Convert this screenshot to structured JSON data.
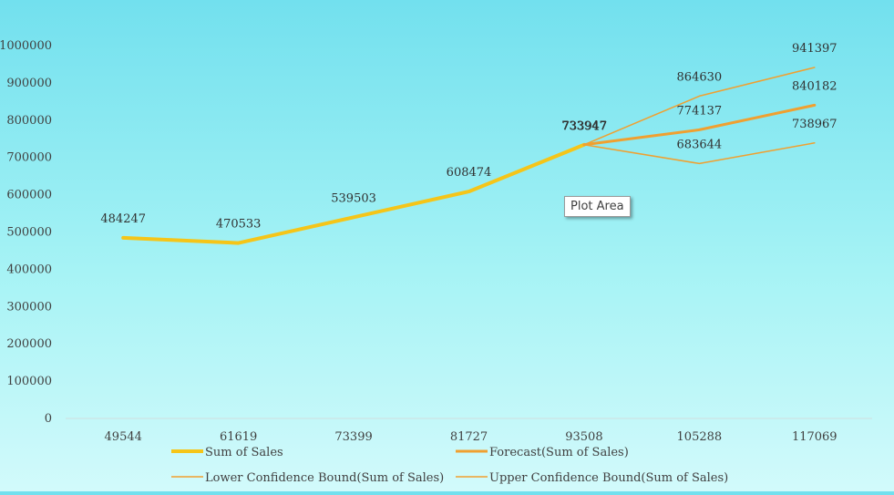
{
  "chart_data": {
    "type": "line",
    "title": "",
    "xlabel": "",
    "ylabel": "",
    "categories": [
      "49544",
      "61619",
      "73399",
      "81727",
      "93508",
      "105288",
      "117069"
    ],
    "ylim": [
      0,
      1000000
    ],
    "yticks": [
      0,
      100000,
      200000,
      300000,
      400000,
      500000,
      600000,
      700000,
      800000,
      900000,
      1000000
    ],
    "grid": false,
    "legend_position": "bottom",
    "series": [
      {
        "name": "Sum of Sales",
        "values": [
          484247,
          470533,
          539503,
          608474,
          733947,
          null,
          null
        ],
        "color": "#f5c518"
      },
      {
        "name": "Forecast(Sum of Sales)",
        "values": [
          null,
          null,
          null,
          null,
          733947,
          774137,
          840182
        ],
        "color": "#f0a030"
      },
      {
        "name": "Lower Confidence Bound(Sum of Sales)",
        "values": [
          null,
          null,
          null,
          null,
          733947,
          683644,
          738967
        ],
        "color": "#f0a030"
      },
      {
        "name": "Upper Confidence Bound(Sum of Sales)",
        "values": [
          null,
          null,
          null,
          null,
          733947,
          864630,
          941397
        ],
        "color": "#f0a030"
      }
    ]
  },
  "tooltip": {
    "label": "Plot Area"
  }
}
